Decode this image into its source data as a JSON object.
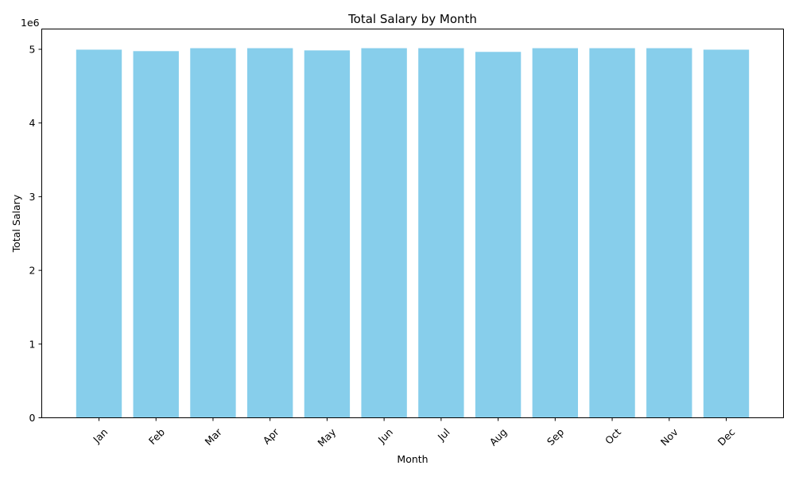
{
  "chart_data": {
    "type": "bar",
    "title": "Total Salary by Month",
    "xlabel": "Month",
    "ylabel": "Total Salary",
    "y_offset_label": "1e6",
    "categories": [
      "Jan",
      "Feb",
      "Mar",
      "Apr",
      "May",
      "Jun",
      "Jul",
      "Aug",
      "Sep",
      "Oct",
      "Nov",
      "Dec"
    ],
    "values": [
      4995000,
      4975000,
      5015000,
      5015000,
      4985000,
      5015000,
      5015000,
      4965000,
      5015000,
      5015000,
      5015000,
      4995000
    ],
    "ylim": [
      0,
      5275000
    ],
    "yticks": [
      0,
      1000000,
      2000000,
      3000000,
      4000000,
      5000000
    ],
    "ytick_labels": [
      "0",
      "1",
      "2",
      "3",
      "4",
      "5"
    ],
    "bar_color": "#87ceeb",
    "grid": false,
    "legend": "none"
  }
}
